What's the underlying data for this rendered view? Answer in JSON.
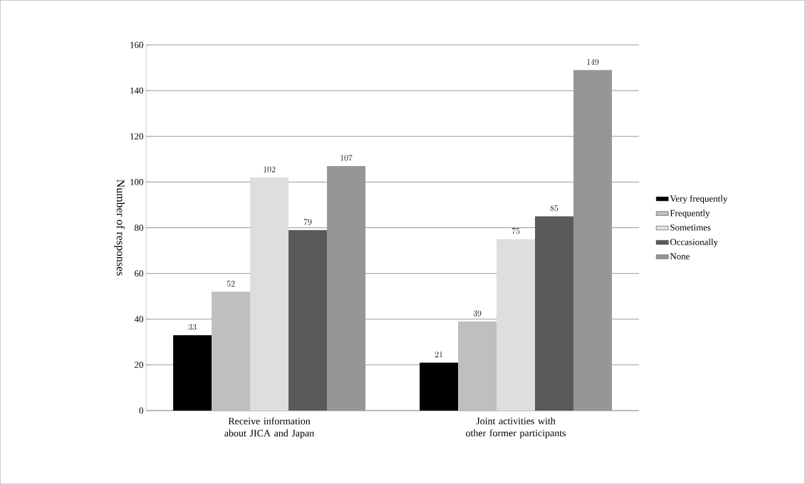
{
  "chart_data": {
    "type": "bar",
    "ylabel": "Number of responses",
    "categories": [
      "Receive information about JICA and Japan",
      "Joint activities with other former participants"
    ],
    "series": [
      {
        "name": "Very frequently",
        "color": "#000000",
        "values": [
          33,
          21
        ]
      },
      {
        "name": "Frequently",
        "color": "#bfbfbf",
        "values": [
          52,
          39
        ]
      },
      {
        "name": "Sometimes",
        "color": "#dedede",
        "values": [
          102,
          75
        ]
      },
      {
        "name": "Occasionally",
        "color": "#5a5a5a",
        "values": [
          79,
          85
        ]
      },
      {
        "name": "None",
        "color": "#969696",
        "values": [
          107,
          149
        ]
      }
    ],
    "ylim": [
      0,
      160
    ],
    "yticks": [
      0,
      20,
      40,
      60,
      80,
      100,
      120,
      140,
      160
    ],
    "grid": "y",
    "legend": "right",
    "data_labels": true
  }
}
